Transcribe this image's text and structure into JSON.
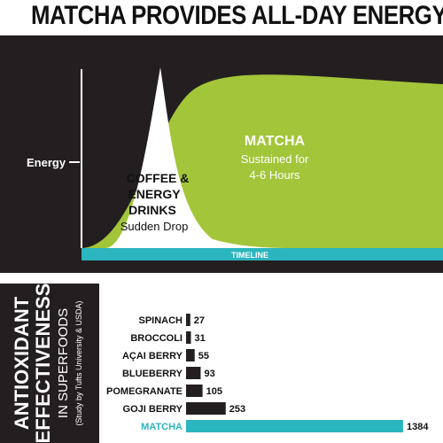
{
  "title": "MATCHA PROVIDES ALL-DAY ENERGY",
  "colors": {
    "background_dark": "#231f20",
    "matcha_green": "#a3c53a",
    "timeline_teal": "#2bb5bf",
    "coffee_white": "#ffffff",
    "bar_dark": "#231f20"
  },
  "energy_chart": {
    "y_label": "Energy",
    "x_label": "TIMELINE",
    "matcha": {
      "name": "MATCHA",
      "line1": "Sustained for",
      "line2": "4-6 Hours"
    },
    "coffee": {
      "line1": "COFFEE &",
      "line2": "ENERGY",
      "line3": "DRINKS",
      "line4": "Sudden Drop"
    }
  },
  "antioxidant": {
    "heading_line1": "ANTIOXIDANT",
    "heading_line2": "EFFECTIVENESS",
    "heading_line3": "IN SUPERFOODS",
    "heading_line4": "(Study by Tufts University & USDA)"
  },
  "chart_data": {
    "type": "bar",
    "orientation": "horizontal",
    "categories": [
      "SPINACH",
      "BROCCOLI",
      "AÇAI BERRY",
      "BLUEBERRY",
      "POMEGRANATE",
      "GOJI BERRY",
      "MATCHA"
    ],
    "values": [
      27,
      31,
      55,
      93,
      105,
      253,
      1384
    ],
    "highlight": "MATCHA",
    "highlight_color": "#2bb5bf",
    "bar_color": "#231f20"
  }
}
